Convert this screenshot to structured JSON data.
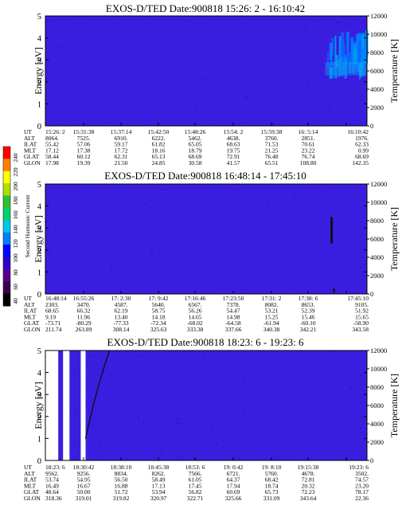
{
  "chart_data": {
    "type": "heatmap",
    "instrument": "EXOS-D/TED",
    "date": "900818",
    "colorbar": {
      "label": "Second Harmonic Current",
      "ticks": [
        "40",
        "60",
        "80",
        "100",
        "120",
        "140",
        "160",
        "180",
        "200",
        "220",
        "240"
      ],
      "colors": [
        "#000000",
        "#3a0050",
        "#5a0090",
        "#3000c8",
        "#0000ff",
        "#0080ff",
        "#00c8e6",
        "#00d070",
        "#30c030",
        "#b0e000",
        "#ffff00",
        "#ff8000",
        "#ff0000"
      ]
    },
    "panels": [
      {
        "title": "EXOS-D/TED   Date:900818   15:26: 2 - 16:10:42",
        "ylabel": "Energy [eV]",
        "y2label": "Temperature [K]",
        "ylim": [
          0,
          5
        ],
        "y2lim": [
          0,
          12000
        ],
        "yticks": [
          "0",
          "1",
          "2",
          "3",
          "4",
          "5"
        ],
        "y2ticks": [
          "0",
          "2000",
          "4000",
          "6000",
          "8000",
          "10000",
          "12000"
        ],
        "orbit_rows": [
          {
            "label": "UT",
            "values": [
              "15:26: 2",
              "15:31:38",
              "15:37:14",
              "15:42:50",
              "15:48:26",
              "15:54: 2",
              "15:59:38",
              "16: 5:14",
              "16:10:42"
            ]
          },
          {
            "label": "ALT",
            "values": [
              "8064.",
              "7525.",
              "6910.",
              "6222.",
              "5462.",
              "4638.",
              "3760.",
              "2851.",
              "1976."
            ]
          },
          {
            "label": "ILAT",
            "values": [
              "55.42",
              "57.06",
              "59.17",
              "61.82",
              "65.05",
              "68.63",
              "71.53",
              "70.61",
              "62.33"
            ]
          },
          {
            "label": "MLT",
            "values": [
              "17.12",
              "17.38",
              "17.72",
              "18.16",
              "18.79",
              "19.75",
              "21.25",
              "23.22",
              "0.99"
            ]
          },
          {
            "label": "GLAT",
            "values": [
              "58.44",
              "60.12",
              "62.31",
              "65.13",
              "68.69",
              "72.91",
              "76.48",
              "76.74",
              "68.69"
            ]
          },
          {
            "label": "GLON",
            "values": [
              "17.98",
              "19.39",
              "21.50",
              "24.85",
              "30.58",
              "41.57",
              "65.51",
              "108.80",
              "142.35"
            ]
          }
        ],
        "features": [
          {
            "kind": "enhancement",
            "t": [
              0.87,
              1.0
            ],
            "energy": [
              2.1,
              4.0
            ],
            "intensity": "100-120"
          }
        ]
      },
      {
        "title": "EXOS-D/TED   Date:900818   16:48:14 - 17:45:10",
        "ylabel": "Energy [eV]",
        "y2label": "Temperature [K]",
        "ylim": [
          0,
          5
        ],
        "y2lim": [
          0,
          12000
        ],
        "yticks": [
          "0",
          "1",
          "2",
          "3",
          "4",
          "5"
        ],
        "y2ticks": [
          "0",
          "2000",
          "4000",
          "6000",
          "8000",
          "10000",
          "12000"
        ],
        "orbit_rows": [
          {
            "label": "UT",
            "values": [
              "16:48:14",
              "16:55:26",
              "17: 2:30",
              "17: 9:42",
              "17:16:46",
              "17:23:50",
              "17:31: 2",
              "17:38: 6",
              "17:45:10"
            ]
          },
          {
            "label": "ALT",
            "values": [
              "2303.",
              "3470.",
              "4587.",
              "5640.",
              "6567.",
              "7378.",
              "8082.",
              "8653.",
              "9105."
            ]
          },
          {
            "label": "ILAT",
            "values": [
              "68.65",
              "66.32",
              "62.19",
              "58.75",
              "56.26",
              "54.47",
              "53.21",
              "52.39",
              "51.92"
            ]
          },
          {
            "label": "MLT",
            "values": [
              "9.19",
              "11.96",
              "13.40",
              "14.18",
              "14.65",
              "14.98",
              "15.25",
              "15.46",
              "15.65"
            ]
          },
          {
            "label": "GLAT",
            "values": [
              "-73.71",
              "-80.29",
              "-77.33",
              "-72.34",
              "-68.02",
              "-64.58",
              "-61.94",
              "-60.10",
              "-58.90"
            ]
          },
          {
            "label": "GLON",
            "values": [
              "211.74",
              "263.89",
              "308.14",
              "325.63",
              "333.38",
              "337.66",
              "340.38",
              "342.21",
              "343.58"
            ]
          }
        ],
        "features": [
          {
            "kind": "spike",
            "t": 0.89,
            "energy": [
              2.3,
              3.5
            ],
            "intensity": "40-60"
          }
        ]
      },
      {
        "title": "EXOS-D/TED   Date:900818   18:23: 6 - 19:23: 6",
        "ylabel": "Energy [eV]",
        "y2label": "Temperature [K]",
        "ylim": [
          0,
          5
        ],
        "y2lim": [
          0,
          12000
        ],
        "yticks": [
          "0",
          "1",
          "2",
          "3",
          "4",
          "5"
        ],
        "y2ticks": [
          "0",
          "2000",
          "4000",
          "6000",
          "8000",
          "10000",
          "12000"
        ],
        "orbit_rows": [
          {
            "label": "UT",
            "values": [
              "18:23: 6",
              "18:30:42",
              "18:38:10",
              "18:45:38",
              "18:53: 6",
              "19: 0:42",
              "19: 8:10",
              "19:15:38",
              "19:23: 6"
            ]
          },
          {
            "label": "ALT",
            "values": [
              "9562.",
              "9256.",
              "8834.",
              "8262.",
              "7566.",
              "6721.",
              "5760.",
              "4678.",
              "3502."
            ]
          },
          {
            "label": "ILAT",
            "values": [
              "53.74",
              "54.95",
              "56.50",
              "58.49",
              "61.05",
              "64.37",
              "68.42",
              "72.81",
              "74.57"
            ]
          },
          {
            "label": "MLT",
            "values": [
              "16.49",
              "16.67",
              "16.88",
              "17.13",
              "17.45",
              "17.94",
              "18.74",
              "20.32",
              "23.20"
            ]
          },
          {
            "label": "GLAT",
            "values": [
              "48.64",
              "50.00",
              "51.72",
              "53.94",
              "56.82",
              "60.69",
              "65.73",
              "72.23",
              "78.17"
            ]
          },
          {
            "label": "GLON",
            "values": [
              "318.36",
              "319.01",
              "319.82",
              "320.97",
              "322.71",
              "325.66",
              "331.09",
              "343.64",
              "22.36"
            ]
          }
        ],
        "features": [
          {
            "kind": "data-gap",
            "t": [
              0.0,
              0.04
            ]
          },
          {
            "kind": "data-gap",
            "t": [
              0.055,
              0.075
            ]
          },
          {
            "kind": "data-gap",
            "t": [
              0.11,
              0.125
            ]
          },
          {
            "kind": "trace",
            "t": [
              0.125,
              0.2
            ],
            "energy": [
              1.0,
              5.0
            ]
          }
        ]
      }
    ]
  }
}
